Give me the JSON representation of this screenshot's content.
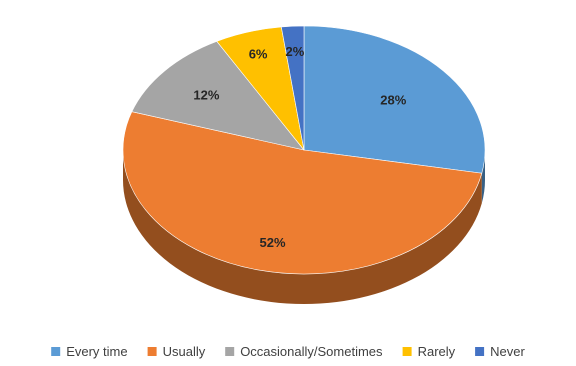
{
  "chart_data": {
    "type": "pie",
    "style": "3d",
    "categories": [
      "Every time",
      "Usually",
      "Occasionally/Sometimes",
      "Rarely",
      "Never"
    ],
    "values": [
      28,
      52,
      12,
      6,
      2
    ],
    "data_labels": [
      "28%",
      "52%",
      "12%",
      "6%",
      "2%"
    ],
    "colors": [
      "#5B9BD5",
      "#ED7D31",
      "#A5A5A5",
      "#FFC000",
      "#4472C4"
    ],
    "legend": {
      "position": "bottom",
      "entries": [
        "Every time",
        "Usually",
        "Occasionally/Sometimes",
        "Rarely",
        "Never"
      ]
    },
    "title": ""
  }
}
